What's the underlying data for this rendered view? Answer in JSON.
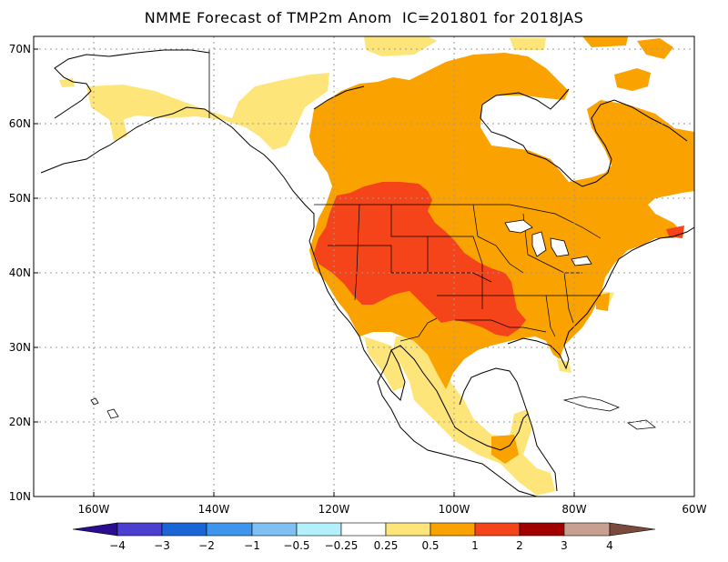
{
  "title": "NMME Forecast of TMP2m Anom  IC=201801 for 2018JAS",
  "map": {
    "projection": "latitude-longitude",
    "lon_range": [
      -170,
      -60
    ],
    "lat_range": [
      10,
      72
    ],
    "x_ticks": [
      "160W",
      "140W",
      "120W",
      "100W",
      "80W",
      "60W"
    ],
    "y_ticks": [
      "10N",
      "20N",
      "30N",
      "40N",
      "50N",
      "60N",
      "70N"
    ],
    "gridlines": "dotted"
  },
  "colorbar": {
    "labels": [
      "-4",
      "-3",
      "-2",
      "-1",
      "-0.5",
      "-0.25",
      "0.25",
      "0.5",
      "1",
      "2",
      "3",
      "4"
    ],
    "colors": [
      "#2a0e8f",
      "#4b3fd1",
      "#1a66d6",
      "#3f95ee",
      "#7fc0f4",
      "#b4f0fb",
      "#ffffff",
      "#fde57a",
      "#f9a200",
      "#f5441a",
      "#a00000",
      "#c8a08f",
      "#7a4a3c"
    ]
  },
  "regions": {
    "land_outline_color": "#000000",
    "anomaly_colors": {
      "0.25-0.5": "#fde57a",
      "0.5-1": "#f9a200",
      "1-2": "#f5441a"
    }
  }
}
